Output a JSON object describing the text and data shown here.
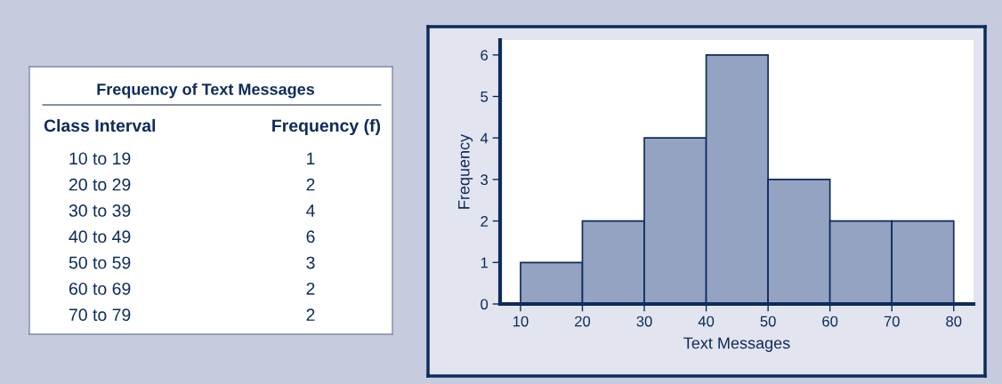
{
  "chart_data": [
    {
      "type": "other",
      "title": "Frequency of Text Messages",
      "xlabel": "Class Interval",
      "ylabel": "Frequency (f)",
      "categories": [
        "10 to 19",
        "20 to 29",
        "30 to 39",
        "40 to 49",
        "50 to 59",
        "60 to 69",
        "70 to 79"
      ],
      "values": [
        1,
        2,
        4,
        6,
        3,
        2,
        2
      ],
      "data_labels": true
    },
    {
      "type": "histogram",
      "xlabel": "Text Messages",
      "ylabel": "Frequency",
      "bins": [
        10,
        20,
        30,
        40,
        50,
        60,
        70,
        80
      ],
      "values": [
        1,
        2,
        4,
        6,
        3,
        2,
        2
      ],
      "color": "#94a3c2",
      "xlim": [
        6.7,
        83.2
      ],
      "ylim": [
        0,
        6.36
      ],
      "xticks": [
        10,
        20,
        30,
        40,
        50,
        60,
        70,
        80
      ],
      "yticks": [
        0,
        1,
        2,
        3,
        4,
        5,
        6
      ],
      "grid": false
    }
  ]
}
